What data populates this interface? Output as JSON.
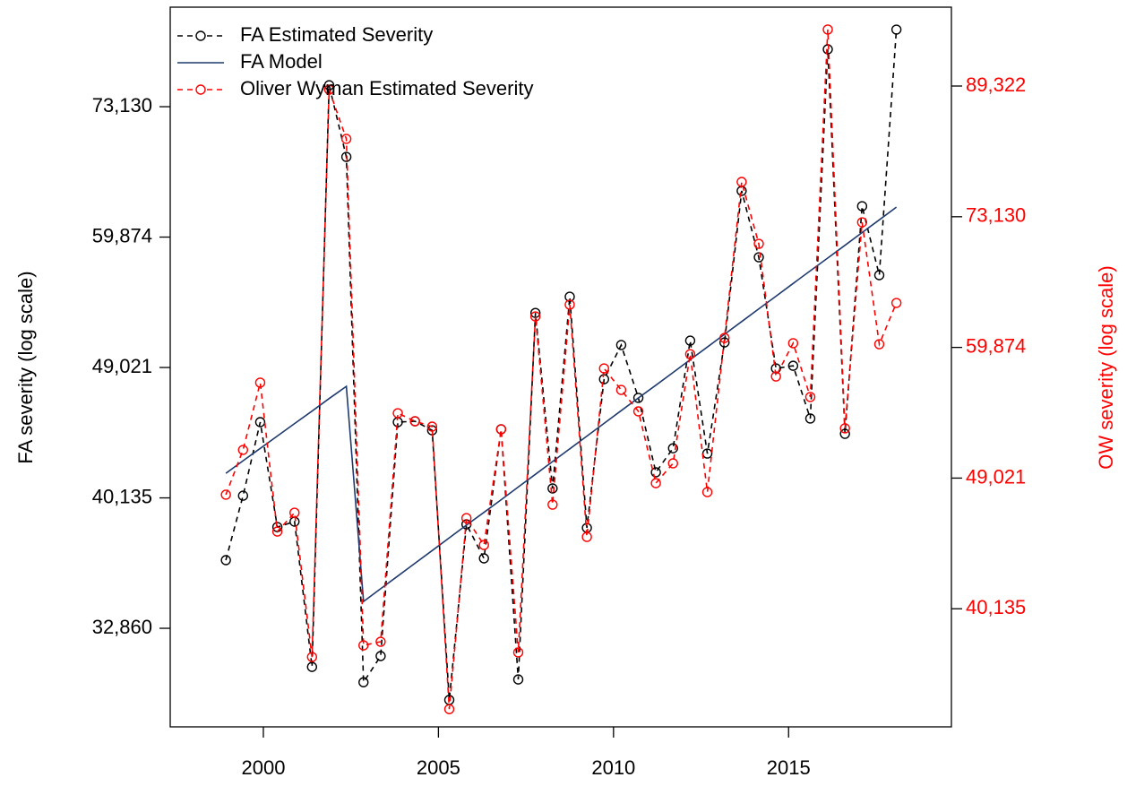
{
  "chart_data": {
    "type": "line",
    "log_scale": true,
    "legend": "top-left",
    "x": [
      1998.93,
      1999.42,
      1999.91,
      2000.4,
      2000.89,
      2001.39,
      2001.88,
      2002.37,
      2002.86,
      2003.35,
      2003.84,
      2004.33,
      2004.82,
      2005.31,
      2005.8,
      2006.3,
      2006.79,
      2007.28,
      2007.77,
      2008.26,
      2008.75,
      2009.24,
      2009.73,
      2010.22,
      2010.71,
      2011.21,
      2011.7,
      2012.19,
      2012.68,
      2013.17,
      2013.66,
      2014.15,
      2014.64,
      2015.13,
      2015.62,
      2016.12,
      2016.61,
      2017.1,
      2017.59,
      2018.08
    ],
    "xlim": [
      1997.34,
      2019.65
    ],
    "xticks": [
      2000,
      2005,
      2010,
      2015
    ],
    "ylabel": "FA severity (log scale)",
    "ylim": [
      28250,
      85190
    ],
    "yticks": [
      {
        "value": 32860,
        "label": "32,860"
      },
      {
        "value": 40135,
        "label": "40,135"
      },
      {
        "value": 49021,
        "label": "49,021"
      },
      {
        "value": 59874,
        "label": "59,874"
      },
      {
        "value": 73130,
        "label": "73,130"
      }
    ],
    "y2label": "OW severity (log scale)",
    "y2lim": [
      33500,
      100780
    ],
    "y2ticks": [
      {
        "value": 40135,
        "label": "40,135"
      },
      {
        "value": 49021,
        "label": "49,021"
      },
      {
        "value": 59874,
        "label": "59,874"
      },
      {
        "value": 73130,
        "label": "73,130"
      },
      {
        "value": 89322,
        "label": "89,322"
      }
    ],
    "y2color": "#ff0000",
    "series": [
      {
        "name": "FA Estimated Severity",
        "color": "#000000",
        "line_style": "dashed",
        "marker": "circle",
        "values": [
          36480,
          40270,
          45080,
          38380,
          38700,
          30970,
          75580,
          67710,
          30250,
          31490,
          45080,
          45140,
          44520,
          29440,
          38540,
          36580,
          44590,
          30380,
          53300,
          40720,
          54640,
          38330,
          48150,
          50740,
          46790,
          41740,
          43310,
          51080,
          42960,
          50940,
          64270,
          58050,
          48950,
          49150,
          45330,
          79860,
          44280,
          62780,
          56480,
          82310
        ]
      },
      {
        "name": "FA Model",
        "color": "#1f3a6e",
        "line_style": "solid",
        "marker": "none",
        "values": [
          41680,
          42490,
          43300,
          44130,
          44980,
          45850,
          46740,
          47620,
          34240,
          34915,
          35603,
          36304,
          37019,
          37749,
          38492,
          39251,
          40024,
          40813,
          41617,
          42437,
          43273,
          44125,
          44995,
          45881,
          46785,
          47707,
          48647,
          49605,
          50583,
          51579,
          52595,
          53632,
          54688,
          55766,
          56864,
          57985,
          59127,
          60292,
          61480,
          62691
        ]
      },
      {
        "name": "Oliver Wyman Estimated Severity",
        "color": "#ff0000",
        "line_style": "dashed",
        "marker": "circle",
        "axis": "y2",
        "values": [
          47790,
          51180,
          56730,
          45170,
          46490,
          37280,
          88830,
          82380,
          37950,
          38160,
          54140,
          53480,
          53040,
          34420,
          46110,
          44250,
          52820,
          37540,
          62780,
          47070,
          63920,
          44800,
          57980,
          56100,
          54290,
          48640,
          50140,
          59260,
          47980,
          60750,
          77130,
          70160,
          57270,
          60260,
          55500,
          97390,
          52900,
          72510,
          60170,
          64090
        ]
      }
    ]
  }
}
